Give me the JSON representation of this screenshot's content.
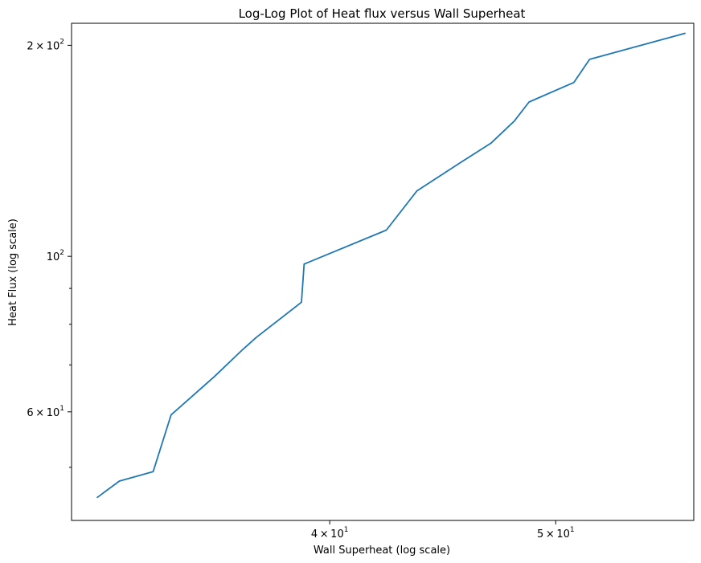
{
  "chart_data": {
    "type": "line",
    "title": "Log-Log Plot of Heat flux versus Wall Superheat",
    "xlabel": "Wall Superheat (log scale)",
    "ylabel": "Heat Flux (log scale)",
    "xscale": "log",
    "yscale": "log",
    "xlim": [
      31.0,
      57.3
    ],
    "ylim": [
      42.0,
      215.0
    ],
    "grid": false,
    "line_color": "#1f77b4",
    "x_ticks": [
      {
        "value": 40,
        "mantissa": "4",
        "base": "10",
        "exp": "1",
        "separator": "×"
      },
      {
        "value": 50,
        "mantissa": "5",
        "base": "10",
        "exp": "1",
        "separator": "×"
      }
    ],
    "y_ticks": [
      {
        "value": 60,
        "mantissa": "6",
        "base": "10",
        "exp": "1",
        "separator": "×"
      },
      {
        "value": 100,
        "mantissa": "",
        "base": "10",
        "exp": "2",
        "separator": ""
      },
      {
        "value": 200,
        "mantissa": "2",
        "base": "10",
        "exp": "2",
        "separator": "×"
      }
    ],
    "x_minor_ticks": [],
    "y_minor_ticks": [
      50,
      70,
      80,
      90
    ],
    "series": [
      {
        "x": [
          31.8,
          32.5,
          33.6,
          34.2,
          35.7,
          36.7,
          37.2,
          38.9,
          39.0,
          42.3,
          43.6,
          45.5,
          46.9,
          48.0,
          48.7,
          50.9,
          51.7,
          56.8
        ],
        "y": [
          45.3,
          47.8,
          49.3,
          59.4,
          67.4,
          73.6,
          76.6,
          86.0,
          97.5,
          109.0,
          124.0,
          136.0,
          145.0,
          156.0,
          166.0,
          177.0,
          191.0,
          208.0
        ]
      }
    ]
  }
}
